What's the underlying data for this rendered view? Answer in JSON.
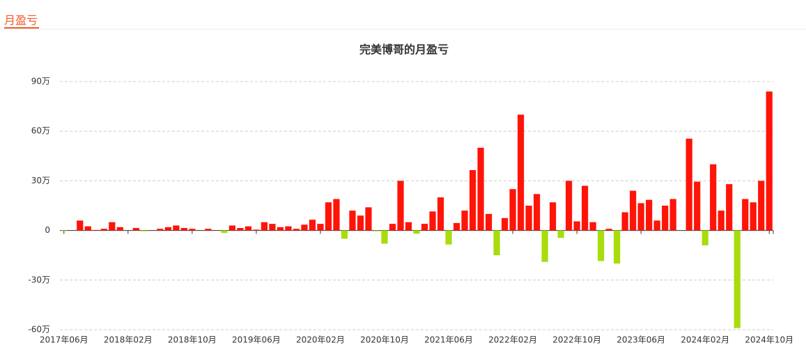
{
  "tab": "月盈亏",
  "chart_data": {
    "type": "bar",
    "title": "完美博哥的月盈亏",
    "categories": [
      "2017年06月",
      null,
      null,
      null,
      null,
      null,
      null,
      null,
      "2018年02月",
      null,
      null,
      null,
      null,
      null,
      null,
      null,
      "2018年10月",
      null,
      null,
      null,
      null,
      null,
      null,
      null,
      "2019年06月",
      null,
      null,
      null,
      null,
      null,
      null,
      null,
      "2020年02月",
      null,
      null,
      null,
      null,
      null,
      null,
      null,
      "2020年10月",
      null,
      null,
      null,
      null,
      null,
      null,
      null,
      "2021年06月",
      null,
      null,
      null,
      null,
      null,
      null,
      null,
      "2022年02月",
      null,
      null,
      null,
      null,
      null,
      null,
      null,
      "2022年10月",
      null,
      null,
      null,
      null,
      null,
      null,
      null,
      "2023年06月",
      null,
      null,
      null,
      null,
      null,
      null,
      null,
      "2024年02月",
      null,
      null,
      null,
      null,
      null,
      null,
      null,
      "2024年10月"
    ],
    "values": [
      -0.3,
      0,
      6,
      2.5,
      0.3,
      1,
      5,
      2,
      0,
      1.5,
      -0.5,
      0,
      1,
      2,
      3,
      1.5,
      1,
      0,
      1,
      0,
      -1.5,
      3,
      1.5,
      2.5,
      0.5,
      5,
      4,
      2,
      2.5,
      1,
      3.5,
      6.5,
      4,
      17,
      19,
      -5,
      12,
      9,
      14,
      -0.5,
      -8,
      4,
      30,
      5,
      -2,
      4,
      11.5,
      20,
      -8.5,
      4.5,
      12,
      36.5,
      50,
      10,
      -15,
      7.5,
      25,
      70,
      15,
      22,
      -19,
      17,
      -4.5,
      30,
      5.5,
      27,
      5,
      -18.5,
      1,
      -20,
      11,
      24,
      16.5,
      18.5,
      6,
      15,
      19,
      0,
      55.5,
      29.5,
      -9,
      40,
      12,
      28,
      -59,
      19,
      17,
      30,
      84
    ],
    "color": "#ff1408",
    "negative_color": "#a8dc0b",
    "ylim": [
      -60,
      90
    ],
    "yticks": [
      {
        "value": -60,
        "label": "-60万"
      },
      {
        "value": -30,
        "label": "-30万"
      },
      0,
      {
        "value": 30,
        "label": "30万"
      },
      {
        "value": 60,
        "label": "60万"
      },
      {
        "value": 90,
        "label": "90万"
      }
    ],
    "grid": true
  }
}
